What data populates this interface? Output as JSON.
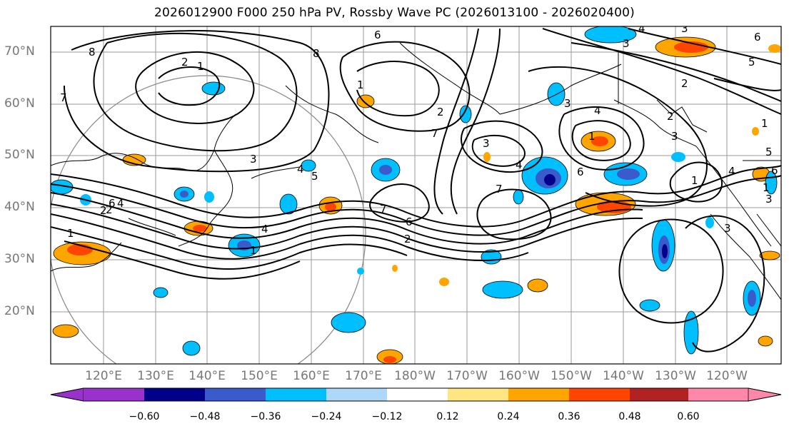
{
  "title": "2026012900 F000 250 hPa PV, Rossby Wave PC (2026013100 - 2026020400)",
  "axes": {
    "lat_labels": [
      "70°N",
      "60°N",
      "50°N",
      "40°N",
      "30°N",
      "20°N"
    ],
    "lon_labels": [
      "120°E",
      "130°E",
      "140°E",
      "150°E",
      "160°E",
      "170°E",
      "180°W",
      "170°W",
      "160°W",
      "150°W",
      "140°W",
      "130°W",
      "120°W"
    ]
  },
  "colorbar": {
    "labels": [
      "−0.60",
      "−0.48",
      "−0.36",
      "−0.24",
      "−0.12",
      "0.12",
      "0.24",
      "0.36",
      "0.48",
      "0.60"
    ],
    "colors": [
      "#9932cc",
      "#00008b",
      "#3a5bcc",
      "#00bfff",
      "#add8f7",
      "#ffffff",
      "#ffe680",
      "#ffa500",
      "#ff4500",
      "#b22222",
      "#ff88aa"
    ]
  },
  "contour_labels": [
    "8",
    "2",
    "1",
    "7",
    "6",
    "8",
    "3",
    "5",
    "4",
    "3",
    "7",
    "6",
    "2",
    "1",
    "4",
    "3",
    "4",
    "5",
    "7",
    "6",
    "2",
    "4",
    "1",
    "1",
    "2",
    "3",
    "2",
    "1",
    "6",
    "3",
    "7",
    "4",
    "1",
    "2",
    "5",
    "6",
    "4",
    "1",
    "6",
    "2",
    "3",
    "3",
    "3",
    "4",
    "1"
  ]
}
